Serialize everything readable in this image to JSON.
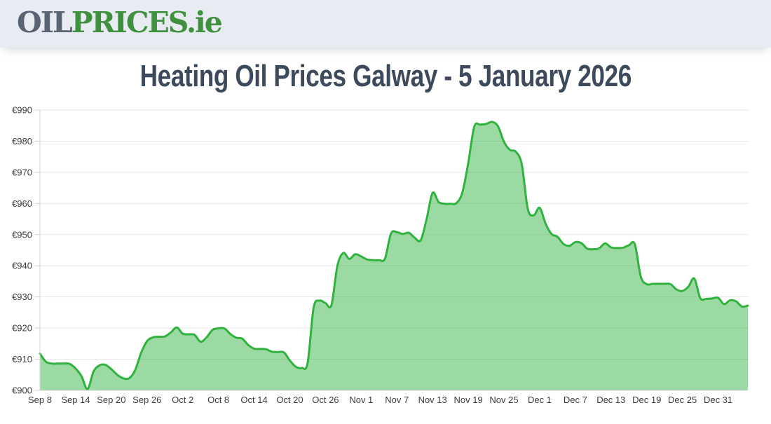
{
  "header": {
    "logo": {
      "part1": "OIL",
      "part2": "PRICES",
      "part3": ".ie"
    }
  },
  "page_title": "Heating Oil Prices Galway - 5 January 2026",
  "colors": {
    "header_bg": "#e9ebf3",
    "logo_gray": "#5a6372",
    "logo_green": "#3f9140",
    "title_text": "#3d4a5b",
    "line_green": "#31b23e",
    "area_fill": "rgba(49,178,62,0.48)",
    "gridline": "#e6e6e6",
    "axis_line": "#d4d4d4",
    "label_text": "#3c3c3c"
  },
  "chart_data": {
    "type": "area",
    "title": "Heating Oil Prices Galway - 5 January 2026",
    "currency_prefix": "€",
    "ylim": [
      900,
      990
    ],
    "y_tick_step": 10,
    "y_tick_labels": [
      "€900",
      "€910",
      "€920",
      "€930",
      "€940",
      "€950",
      "€960",
      "€970",
      "€980",
      "€990"
    ],
    "x_tick_labels": [
      "Sep 8",
      "Sep 14",
      "Sep 20",
      "Sep 26",
      "Oct 2",
      "Oct 8",
      "Oct 14",
      "Oct 20",
      "Oct 26",
      "Nov 1",
      "Nov 7",
      "Nov 13",
      "Nov 19",
      "Nov 25",
      "Dec 1",
      "Dec 7",
      "Dec 13",
      "Dec 19",
      "Dec 25",
      "Dec 31"
    ],
    "tick_interval_days": 6,
    "start_label": "Sep 8",
    "end_label": "Jan 5",
    "grid": true,
    "legend": false,
    "series": [
      {
        "name": "Heating Oil Price",
        "points_per_day": 1,
        "values": [
          911.8,
          909.2,
          908.6,
          908.6,
          908.6,
          908.5,
          907.0,
          904.5,
          900.4,
          906.0,
          908.0,
          908.2,
          906.8,
          905.0,
          903.9,
          903.9,
          906.5,
          912.0,
          915.8,
          917.0,
          917.2,
          917.3,
          918.6,
          920.2,
          918.2,
          918.0,
          917.8,
          915.6,
          917.0,
          919.4,
          919.9,
          919.9,
          918.1,
          916.9,
          916.6,
          914.6,
          913.4,
          913.3,
          913.2,
          912.4,
          912.3,
          912.2,
          909.6,
          907.6,
          907.2,
          908.8,
          926.5,
          928.8,
          928.0,
          927.4,
          940.0,
          944.1,
          942.2,
          943.7,
          943.0,
          942.0,
          941.8,
          941.8,
          942.3,
          950.3,
          950.8,
          950.2,
          950.6,
          949.0,
          948.2,
          955.0,
          963.4,
          960.5,
          959.9,
          959.9,
          960.1,
          963.5,
          973.0,
          984.6,
          985.3,
          985.5,
          986.2,
          984.8,
          979.8,
          977.2,
          976.6,
          972.5,
          958.3,
          956.2,
          958.6,
          953.5,
          950.2,
          949.3,
          947.0,
          946.4,
          947.6,
          947.3,
          945.5,
          945.3,
          945.6,
          947.2,
          945.9,
          945.7,
          945.8,
          946.6,
          946.9,
          936.5,
          934.1,
          934.2,
          934.2,
          934.2,
          934.1,
          932.4,
          931.9,
          933.3,
          935.9,
          929.6,
          929.4,
          929.5,
          929.7,
          927.7,
          928.9,
          928.6,
          926.9,
          927.2
        ]
      }
    ]
  }
}
